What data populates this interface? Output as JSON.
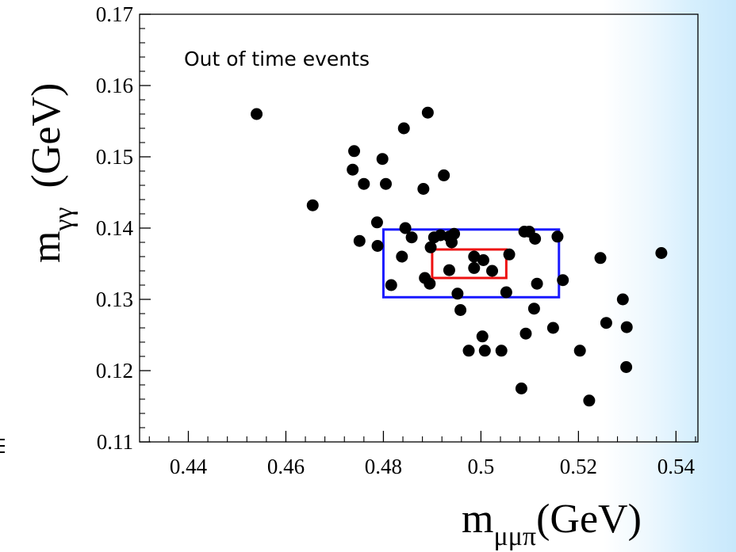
{
  "chart_data": {
    "type": "scatter",
    "title": "",
    "annotation": "Out of time events",
    "xlabel": {
      "base": "m",
      "sub": "μμπ",
      "unit": "(GeV)"
    },
    "ylabel": {
      "base": "m",
      "sub": "γγ",
      "unit": "(GeV)"
    },
    "xlim": [
      0.43,
      0.5445
    ],
    "ylim": [
      0.11,
      0.17
    ],
    "x_ticks": [
      {
        "value": 0.44,
        "label": "0.44"
      },
      {
        "value": 0.46,
        "label": "0.46"
      },
      {
        "value": 0.48,
        "label": "0.48"
      },
      {
        "value": 0.5,
        "label": "0.5"
      },
      {
        "value": 0.52,
        "label": "0.52"
      },
      {
        "value": 0.54,
        "label": "0.54"
      }
    ],
    "y_ticks": [
      {
        "value": 0.11,
        "label": "0.11"
      },
      {
        "value": 0.12,
        "label": "0.12"
      },
      {
        "value": 0.13,
        "label": "0.13"
      },
      {
        "value": 0.14,
        "label": "0.14"
      },
      {
        "value": 0.15,
        "label": "0.15"
      },
      {
        "value": 0.16,
        "label": "0.16"
      },
      {
        "value": 0.17,
        "label": "0.17"
      }
    ],
    "grid": false,
    "regions": [
      {
        "name": "outer",
        "color": "#1a1aff",
        "x": [
          0.48,
          0.516
        ],
        "y": [
          0.1303,
          0.1398
        ]
      },
      {
        "name": "inner",
        "color": "#ee1111",
        "x": [
          0.49,
          0.5052
        ],
        "y": [
          0.133,
          0.137
        ]
      }
    ],
    "series": [
      {
        "marker_color": "#000000",
        "points": [
          [
            0.454,
            0.156
          ],
          [
            0.4655,
            0.1432
          ],
          [
            0.474,
            0.1508
          ],
          [
            0.4737,
            0.1482
          ],
          [
            0.476,
            0.1462
          ],
          [
            0.4751,
            0.1382
          ],
          [
            0.4787,
            0.1408
          ],
          [
            0.4788,
            0.1375
          ],
          [
            0.4798,
            0.1497
          ],
          [
            0.4805,
            0.1462
          ],
          [
            0.4816,
            0.132
          ],
          [
            0.4842,
            0.154
          ],
          [
            0.4838,
            0.136
          ],
          [
            0.4845,
            0.14
          ],
          [
            0.4858,
            0.1387
          ],
          [
            0.4882,
            0.1455
          ],
          [
            0.4885,
            0.133
          ],
          [
            0.4891,
            0.1562
          ],
          [
            0.4895,
            0.1322
          ],
          [
            0.4897,
            0.1373
          ],
          [
            0.4904,
            0.1387
          ],
          [
            0.4917,
            0.139
          ],
          [
            0.4924,
            0.1474
          ],
          [
            0.4935,
            0.1388
          ],
          [
            0.494,
            0.138
          ],
          [
            0.4935,
            0.1341
          ],
          [
            0.4945,
            0.1392
          ],
          [
            0.4952,
            0.1308
          ],
          [
            0.4958,
            0.1285
          ],
          [
            0.4975,
            0.1228
          ],
          [
            0.4986,
            0.136
          ],
          [
            0.4986,
            0.1344
          ],
          [
            0.5003,
            0.1248
          ],
          [
            0.5008,
            0.1228
          ],
          [
            0.5005,
            0.1355
          ],
          [
            0.5023,
            0.134
          ],
          [
            0.5042,
            0.1228
          ],
          [
            0.5052,
            0.131
          ],
          [
            0.5058,
            0.1363
          ],
          [
            0.5083,
            0.1175
          ],
          [
            0.5089,
            0.1395
          ],
          [
            0.5092,
            0.1252
          ],
          [
            0.5099,
            0.1395
          ],
          [
            0.5109,
            0.1287
          ],
          [
            0.5111,
            0.1385
          ],
          [
            0.5115,
            0.1322
          ],
          [
            0.5148,
            0.126
          ],
          [
            0.5157,
            0.1388
          ],
          [
            0.5168,
            0.1327
          ],
          [
            0.5203,
            0.1228
          ],
          [
            0.5222,
            0.1158
          ],
          [
            0.5245,
            0.1358
          ],
          [
            0.5257,
            0.1267
          ],
          [
            0.5291,
            0.13
          ],
          [
            0.5299,
            0.1261
          ],
          [
            0.5298,
            0.1205
          ],
          [
            0.537,
            0.1365
          ]
        ]
      }
    ]
  }
}
